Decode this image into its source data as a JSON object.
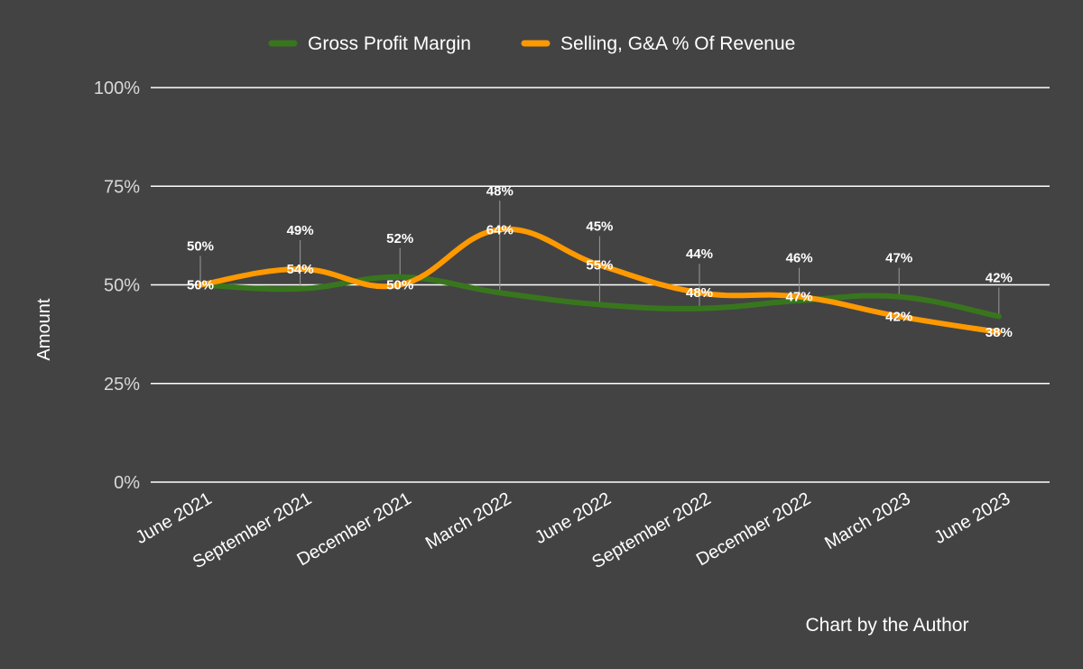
{
  "chart_data": {
    "type": "line",
    "categories": [
      "June 2021",
      "September 2021",
      "December 2021",
      "March 2022",
      "June 2022",
      "September 2022",
      "December 2022",
      "March 2023",
      "June 2023"
    ],
    "series": [
      {
        "name": "Gross Profit Margin",
        "color": "#38761d",
        "values": [
          50,
          49,
          52,
          48,
          45,
          44,
          46,
          47,
          42
        ],
        "labels": [
          "50%",
          "49%",
          "52%",
          "48%",
          "45%",
          "44%",
          "46%",
          "47%",
          "42%"
        ]
      },
      {
        "name": "Selling, G&A % Of Revenue",
        "color": "#ff9900",
        "values": [
          50,
          54,
          50,
          64,
          55,
          48,
          47,
          42,
          38
        ],
        "labels": [
          "50%",
          "54%",
          "50%",
          "64%",
          "55%",
          "48%",
          "47%",
          "42%",
          "38%"
        ]
      }
    ],
    "ylabel": "Amount",
    "ylim": [
      0,
      100
    ],
    "yticks": [
      "0%",
      "25%",
      "50%",
      "75%",
      "100%"
    ],
    "grid": true,
    "legend_position": "top",
    "smooth": true
  },
  "credit": "Chart by the Author"
}
